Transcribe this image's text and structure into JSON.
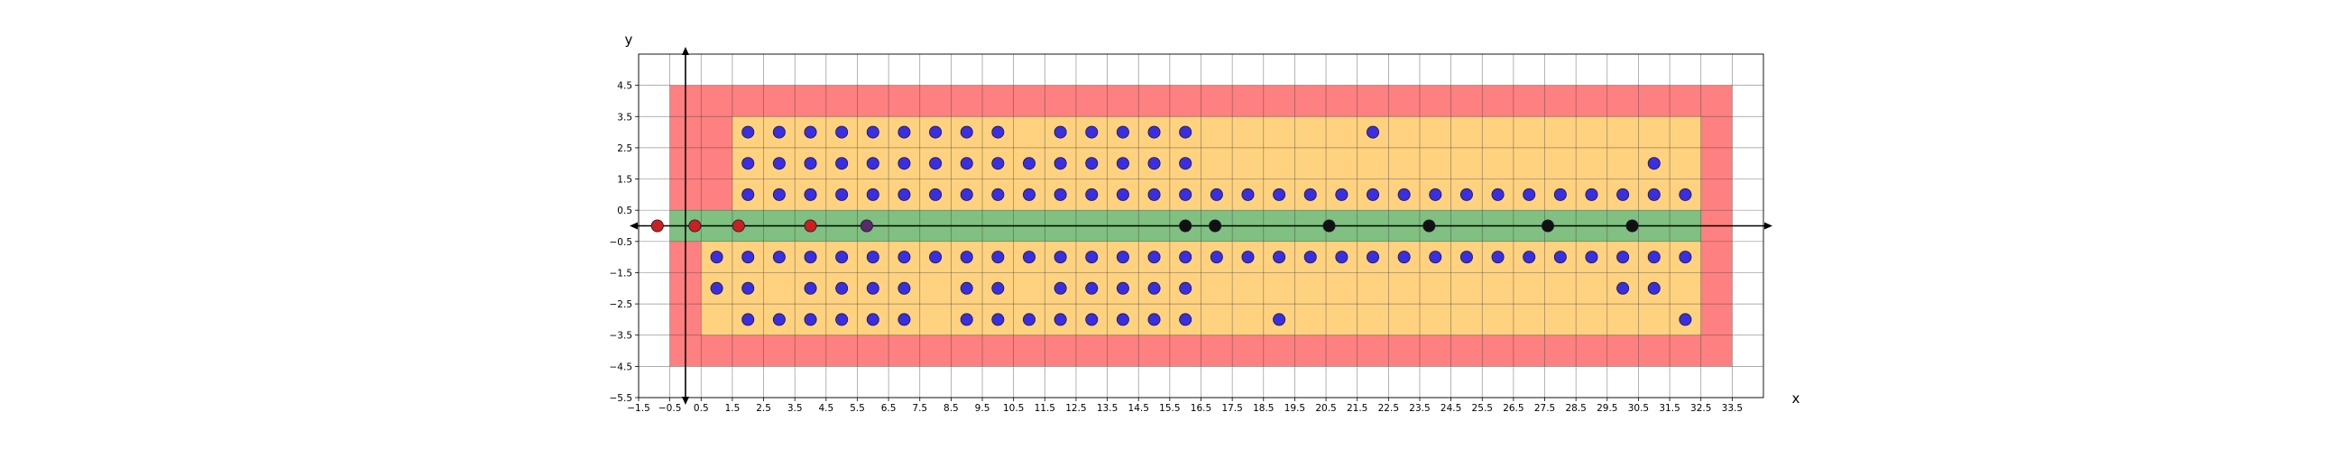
{
  "chart_data": {
    "type": "scatter",
    "title": "",
    "xlabel": "x",
    "ylabel": "y",
    "xlim": [
      -1.5,
      34.5
    ],
    "ylim": [
      -5.5,
      5.5
    ],
    "xticks": [
      -1.5,
      -0.5,
      0.5,
      1.5,
      2.5,
      3.5,
      4.5,
      5.5,
      6.5,
      7.5,
      8.5,
      9.5,
      10.5,
      11.5,
      12.5,
      13.5,
      14.5,
      15.5,
      16.5,
      17.5,
      18.5,
      19.5,
      20.5,
      21.5,
      22.5,
      23.5,
      24.5,
      25.5,
      26.5,
      27.5,
      28.5,
      29.5,
      30.5,
      31.5,
      32.5,
      33.5
    ],
    "yticks": [
      -5.5,
      -4.5,
      -3.5,
      -2.5,
      -1.5,
      -0.5,
      0.5,
      1.5,
      2.5,
      3.5,
      4.5
    ],
    "xtick_labels": [
      "−1.5",
      "−0.5",
      "0.5",
      "1.5",
      "2.5",
      "3.5",
      "4.5",
      "5.5",
      "6.5",
      "7.5",
      "8.5",
      "9.5",
      "10.5",
      "11.5",
      "12.5",
      "13.5",
      "14.5",
      "15.5",
      "16.5",
      "17.5",
      "18.5",
      "19.5",
      "20.5",
      "21.5",
      "22.5",
      "23.5",
      "24.5",
      "25.5",
      "26.5",
      "27.5",
      "28.5",
      "29.5",
      "30.5",
      "31.5",
      "32.5",
      "33.5"
    ],
    "ytick_labels": [
      "−5.5",
      "−4.5",
      "−3.5",
      "−2.5",
      "−1.5",
      "−0.5",
      "0.5",
      "1.5",
      "2.5",
      "3.5",
      "4.5"
    ],
    "grid": true,
    "regions": [
      {
        "x": [
          -0.5,
          33.5
        ],
        "y": [
          -4.5,
          4.5
        ],
        "color": "#ff8080"
      },
      {
        "x": [
          0.5,
          32.5
        ],
        "y": [
          -3.5,
          -0.5
        ],
        "color": "#ffd280"
      },
      {
        "x": [
          1.5,
          32.5
        ],
        "y": [
          0.5,
          3.5
        ],
        "color": "#ffd280"
      },
      {
        "x": [
          -0.5,
          32.5
        ],
        "y": [
          -0.5,
          0.5
        ],
        "color": "#80c080"
      }
    ],
    "series": [
      {
        "color": "#3a2ee0",
        "points": [
          [
            2,
            3
          ],
          [
            3,
            3
          ],
          [
            4,
            3
          ],
          [
            5,
            3
          ],
          [
            6,
            3
          ],
          [
            7,
            3
          ],
          [
            8,
            3
          ],
          [
            9,
            3
          ],
          [
            10,
            3
          ],
          [
            12,
            3
          ],
          [
            13,
            3
          ],
          [
            14,
            3
          ],
          [
            15,
            3
          ],
          [
            16,
            3
          ],
          [
            22,
            3
          ],
          [
            2,
            2
          ],
          [
            3,
            2
          ],
          [
            4,
            2
          ],
          [
            5,
            2
          ],
          [
            6,
            2
          ],
          [
            7,
            2
          ],
          [
            8,
            2
          ],
          [
            9,
            2
          ],
          [
            10,
            2
          ],
          [
            11,
            2
          ],
          [
            12,
            2
          ],
          [
            13,
            2
          ],
          [
            14,
            2
          ],
          [
            15,
            2
          ],
          [
            16,
            2
          ],
          [
            31,
            2
          ],
          [
            2,
            1
          ],
          [
            3,
            1
          ],
          [
            4,
            1
          ],
          [
            5,
            1
          ],
          [
            6,
            1
          ],
          [
            7,
            1
          ],
          [
            8,
            1
          ],
          [
            9,
            1
          ],
          [
            10,
            1
          ],
          [
            11,
            1
          ],
          [
            12,
            1
          ],
          [
            13,
            1
          ],
          [
            14,
            1
          ],
          [
            15,
            1
          ],
          [
            16,
            1
          ],
          [
            17,
            1
          ],
          [
            18,
            1
          ],
          [
            19,
            1
          ],
          [
            20,
            1
          ],
          [
            21,
            1
          ],
          [
            22,
            1
          ],
          [
            23,
            1
          ],
          [
            24,
            1
          ],
          [
            25,
            1
          ],
          [
            26,
            1
          ],
          [
            27,
            1
          ],
          [
            28,
            1
          ],
          [
            29,
            1
          ],
          [
            30,
            1
          ],
          [
            31,
            1
          ],
          [
            32,
            1
          ],
          [
            1,
            -1
          ],
          [
            2,
            -1
          ],
          [
            3,
            -1
          ],
          [
            4,
            -1
          ],
          [
            5,
            -1
          ],
          [
            6,
            -1
          ],
          [
            7,
            -1
          ],
          [
            8,
            -1
          ],
          [
            9,
            -1
          ],
          [
            10,
            -1
          ],
          [
            11,
            -1
          ],
          [
            12,
            -1
          ],
          [
            13,
            -1
          ],
          [
            14,
            -1
          ],
          [
            15,
            -1
          ],
          [
            16,
            -1
          ],
          [
            17,
            -1
          ],
          [
            18,
            -1
          ],
          [
            19,
            -1
          ],
          [
            20,
            -1
          ],
          [
            21,
            -1
          ],
          [
            22,
            -1
          ],
          [
            23,
            -1
          ],
          [
            24,
            -1
          ],
          [
            25,
            -1
          ],
          [
            26,
            -1
          ],
          [
            27,
            -1
          ],
          [
            28,
            -1
          ],
          [
            29,
            -1
          ],
          [
            30,
            -1
          ],
          [
            31,
            -1
          ],
          [
            32,
            -1
          ],
          [
            1,
            -2
          ],
          [
            2,
            -2
          ],
          [
            4,
            -2
          ],
          [
            5,
            -2
          ],
          [
            6,
            -2
          ],
          [
            7,
            -2
          ],
          [
            9,
            -2
          ],
          [
            10,
            -2
          ],
          [
            12,
            -2
          ],
          [
            13,
            -2
          ],
          [
            14,
            -2
          ],
          [
            15,
            -2
          ],
          [
            16,
            -2
          ],
          [
            30,
            -2
          ],
          [
            31,
            -2
          ],
          [
            2,
            -3
          ],
          [
            3,
            -3
          ],
          [
            4,
            -3
          ],
          [
            5,
            -3
          ],
          [
            6,
            -3
          ],
          [
            7,
            -3
          ],
          [
            9,
            -3
          ],
          [
            10,
            -3
          ],
          [
            11,
            -3
          ],
          [
            12,
            -3
          ],
          [
            13,
            -3
          ],
          [
            14,
            -3
          ],
          [
            15,
            -3
          ],
          [
            16,
            -3
          ],
          [
            19,
            -3
          ],
          [
            32,
            -3
          ]
        ]
      },
      {
        "color": "#cc1f1f",
        "points": [
          [
            -0.9,
            0
          ],
          [
            0.3,
            0
          ],
          [
            1.7,
            0
          ],
          [
            4,
            0
          ]
        ]
      },
      {
        "color": "#5a2a6a",
        "points": [
          [
            5.8,
            0
          ]
        ]
      },
      {
        "color": "#111111",
        "points": [
          [
            16,
            0
          ],
          [
            16.95,
            0
          ],
          [
            20.6,
            0
          ],
          [
            23.8,
            0
          ],
          [
            27.6,
            0
          ],
          [
            30.3,
            0
          ]
        ]
      }
    ]
  }
}
